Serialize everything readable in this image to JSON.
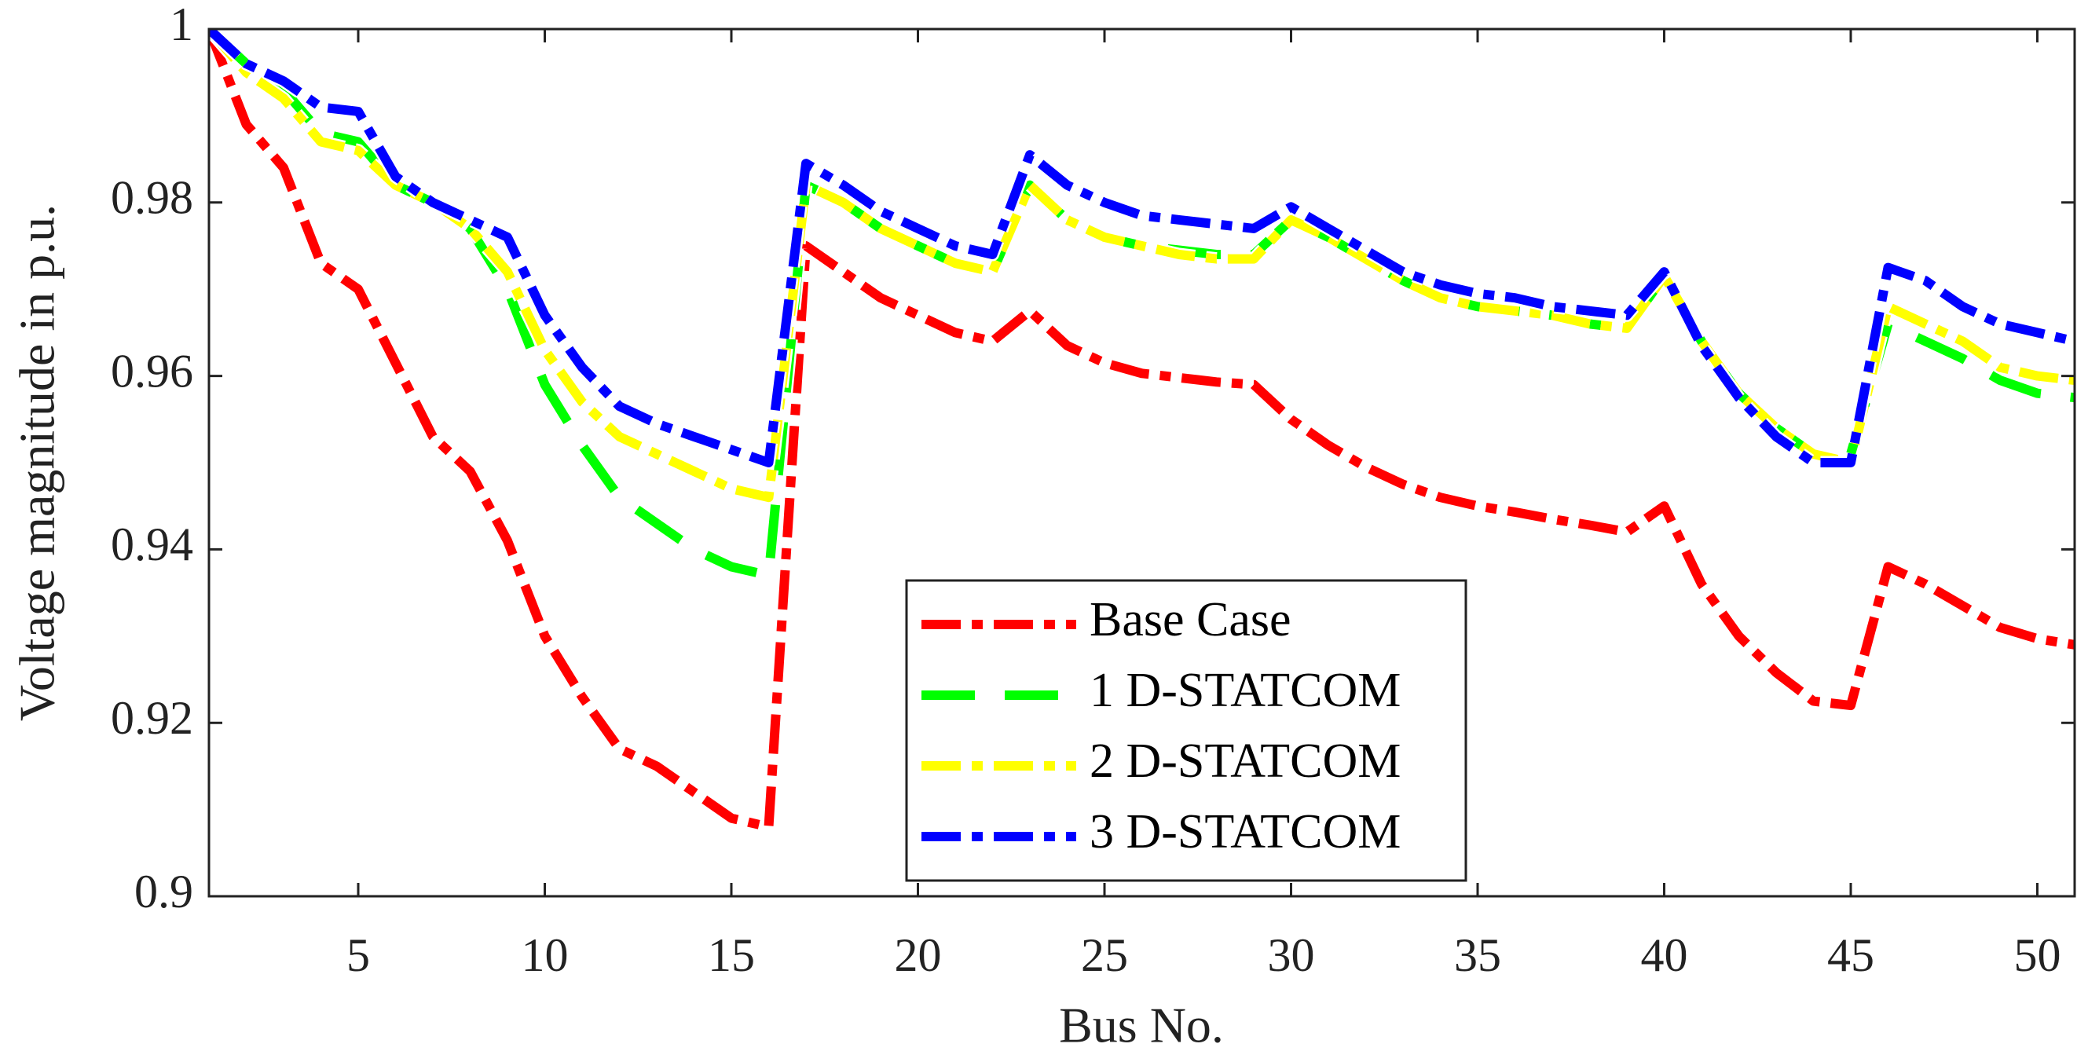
{
  "chart_data": {
    "type": "line",
    "title": "",
    "xlabel": "Bus No.",
    "ylabel": "Voltage magnitude in p.u.",
    "xlim": [
      1,
      51
    ],
    "ylim": [
      0.9,
      1
    ],
    "grid": false,
    "legend_location": "inside-bottom-center",
    "xticks": [
      5,
      10,
      15,
      20,
      25,
      30,
      35,
      40,
      45,
      50
    ],
    "xtick_labels": [
      "5",
      "10",
      "15",
      "20",
      "25",
      "30",
      "35",
      "40",
      "45",
      "50"
    ],
    "yticks": [
      0.9,
      0.92,
      0.94,
      0.96,
      0.98,
      1
    ],
    "ytick_labels": [
      "0.9",
      "0.92",
      "0.94",
      "0.96",
      "0.98",
      "1"
    ],
    "x": [
      1,
      2,
      3,
      4,
      5,
      6,
      7,
      8,
      9,
      10,
      11,
      12,
      13,
      14,
      15,
      16,
      17,
      18,
      19,
      20,
      21,
      22,
      23,
      24,
      25,
      26,
      27,
      28,
      29,
      30,
      31,
      32,
      33,
      34,
      35,
      36,
      37,
      38,
      39,
      40,
      41,
      42,
      43,
      44,
      45,
      46,
      47,
      48,
      49,
      50,
      51
    ],
    "series": [
      {
        "name": "Base Case",
        "color": "#ff0000",
        "line_style": "dash-dot",
        "values": [
          1.0,
          0.989,
          0.984,
          0.973,
          0.97,
          0.9615,
          0.953,
          0.949,
          0.941,
          0.93,
          0.923,
          0.917,
          0.915,
          0.912,
          0.909,
          0.908,
          0.975,
          0.972,
          0.969,
          0.967,
          0.965,
          0.964,
          0.9675,
          0.9635,
          0.9615,
          0.9603,
          0.9598,
          0.9593,
          0.959,
          0.955,
          0.952,
          0.9495,
          0.9475,
          0.946,
          0.945,
          0.9443,
          0.9435,
          0.9428,
          0.942,
          0.945,
          0.936,
          0.93,
          0.9258,
          0.9225,
          0.922,
          0.938,
          0.936,
          0.9335,
          0.931,
          0.9297,
          0.929
        ]
      },
      {
        "name": "1 D-STATCOM",
        "color": "#00ff00",
        "line_style": "dashed",
        "values": [
          1.0,
          0.996,
          0.993,
          0.988,
          0.987,
          0.982,
          0.98,
          0.977,
          0.97,
          0.959,
          0.952,
          0.946,
          0.943,
          0.94,
          0.938,
          0.937,
          0.982,
          0.98,
          0.977,
          0.975,
          0.973,
          0.972,
          0.982,
          0.978,
          0.976,
          0.975,
          0.9745,
          0.974,
          0.974,
          0.978,
          0.976,
          0.9735,
          0.971,
          0.969,
          0.968,
          0.9675,
          0.967,
          0.966,
          0.9655,
          0.9715,
          0.964,
          0.958,
          0.954,
          0.951,
          0.951,
          0.966,
          0.964,
          0.962,
          0.9595,
          0.958,
          0.9575
        ]
      },
      {
        "name": "2 D-STATCOM",
        "color": "#ffff00",
        "line_style": "dash-dot",
        "values": [
          1.0,
          0.995,
          0.992,
          0.987,
          0.986,
          0.982,
          0.98,
          0.977,
          0.972,
          0.963,
          0.957,
          0.953,
          0.951,
          0.949,
          0.947,
          0.946,
          0.982,
          0.98,
          0.977,
          0.975,
          0.973,
          0.972,
          0.982,
          0.978,
          0.976,
          0.975,
          0.974,
          0.9735,
          0.9735,
          0.978,
          0.976,
          0.9735,
          0.971,
          0.969,
          0.968,
          0.9675,
          0.967,
          0.966,
          0.9655,
          0.9715,
          0.964,
          0.958,
          0.954,
          0.951,
          0.95,
          0.968,
          0.966,
          0.964,
          0.961,
          0.96,
          0.9595
        ]
      },
      {
        "name": "3 D-STATCOM",
        "color": "#0000ff",
        "line_style": "dash-dot",
        "values": [
          1.0,
          0.996,
          0.994,
          0.991,
          0.9905,
          0.983,
          0.98,
          0.978,
          0.976,
          0.967,
          0.961,
          0.9565,
          0.9545,
          0.953,
          0.9515,
          0.95,
          0.9845,
          0.982,
          0.979,
          0.977,
          0.975,
          0.974,
          0.9855,
          0.982,
          0.98,
          0.9785,
          0.978,
          0.9775,
          0.977,
          0.9795,
          0.977,
          0.9745,
          0.972,
          0.9705,
          0.9695,
          0.969,
          0.968,
          0.9675,
          0.967,
          0.972,
          0.9635,
          0.9575,
          0.953,
          0.95,
          0.95,
          0.9725,
          0.971,
          0.968,
          0.966,
          0.965,
          0.964
        ]
      }
    ]
  }
}
